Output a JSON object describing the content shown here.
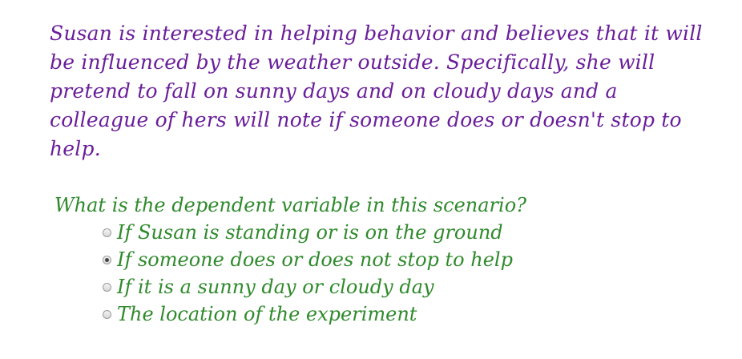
{
  "scenario": {
    "lines": [
      "Susan is interested in helping behavior and believes that it will",
      "be influenced by the weather outside. Specifically, she will",
      "pretend to fall on sunny days and on cloudy days and a",
      "colleague of hers will note if someone does or doesn't stop to",
      "help."
    ]
  },
  "question": {
    "text": "What is the dependent variable in this scenario?",
    "options": [
      {
        "label": "If Susan is standing or is on the ground",
        "selected": false
      },
      {
        "label": "If someone does or does not stop to help",
        "selected": true
      },
      {
        "label": "If it is a sunny day or cloudy day",
        "selected": false
      },
      {
        "label": "The location of the experiment",
        "selected": false
      }
    ]
  },
  "colors": {
    "scenario_text": "#6a1e9a",
    "question_text": "#2f8a2c"
  }
}
